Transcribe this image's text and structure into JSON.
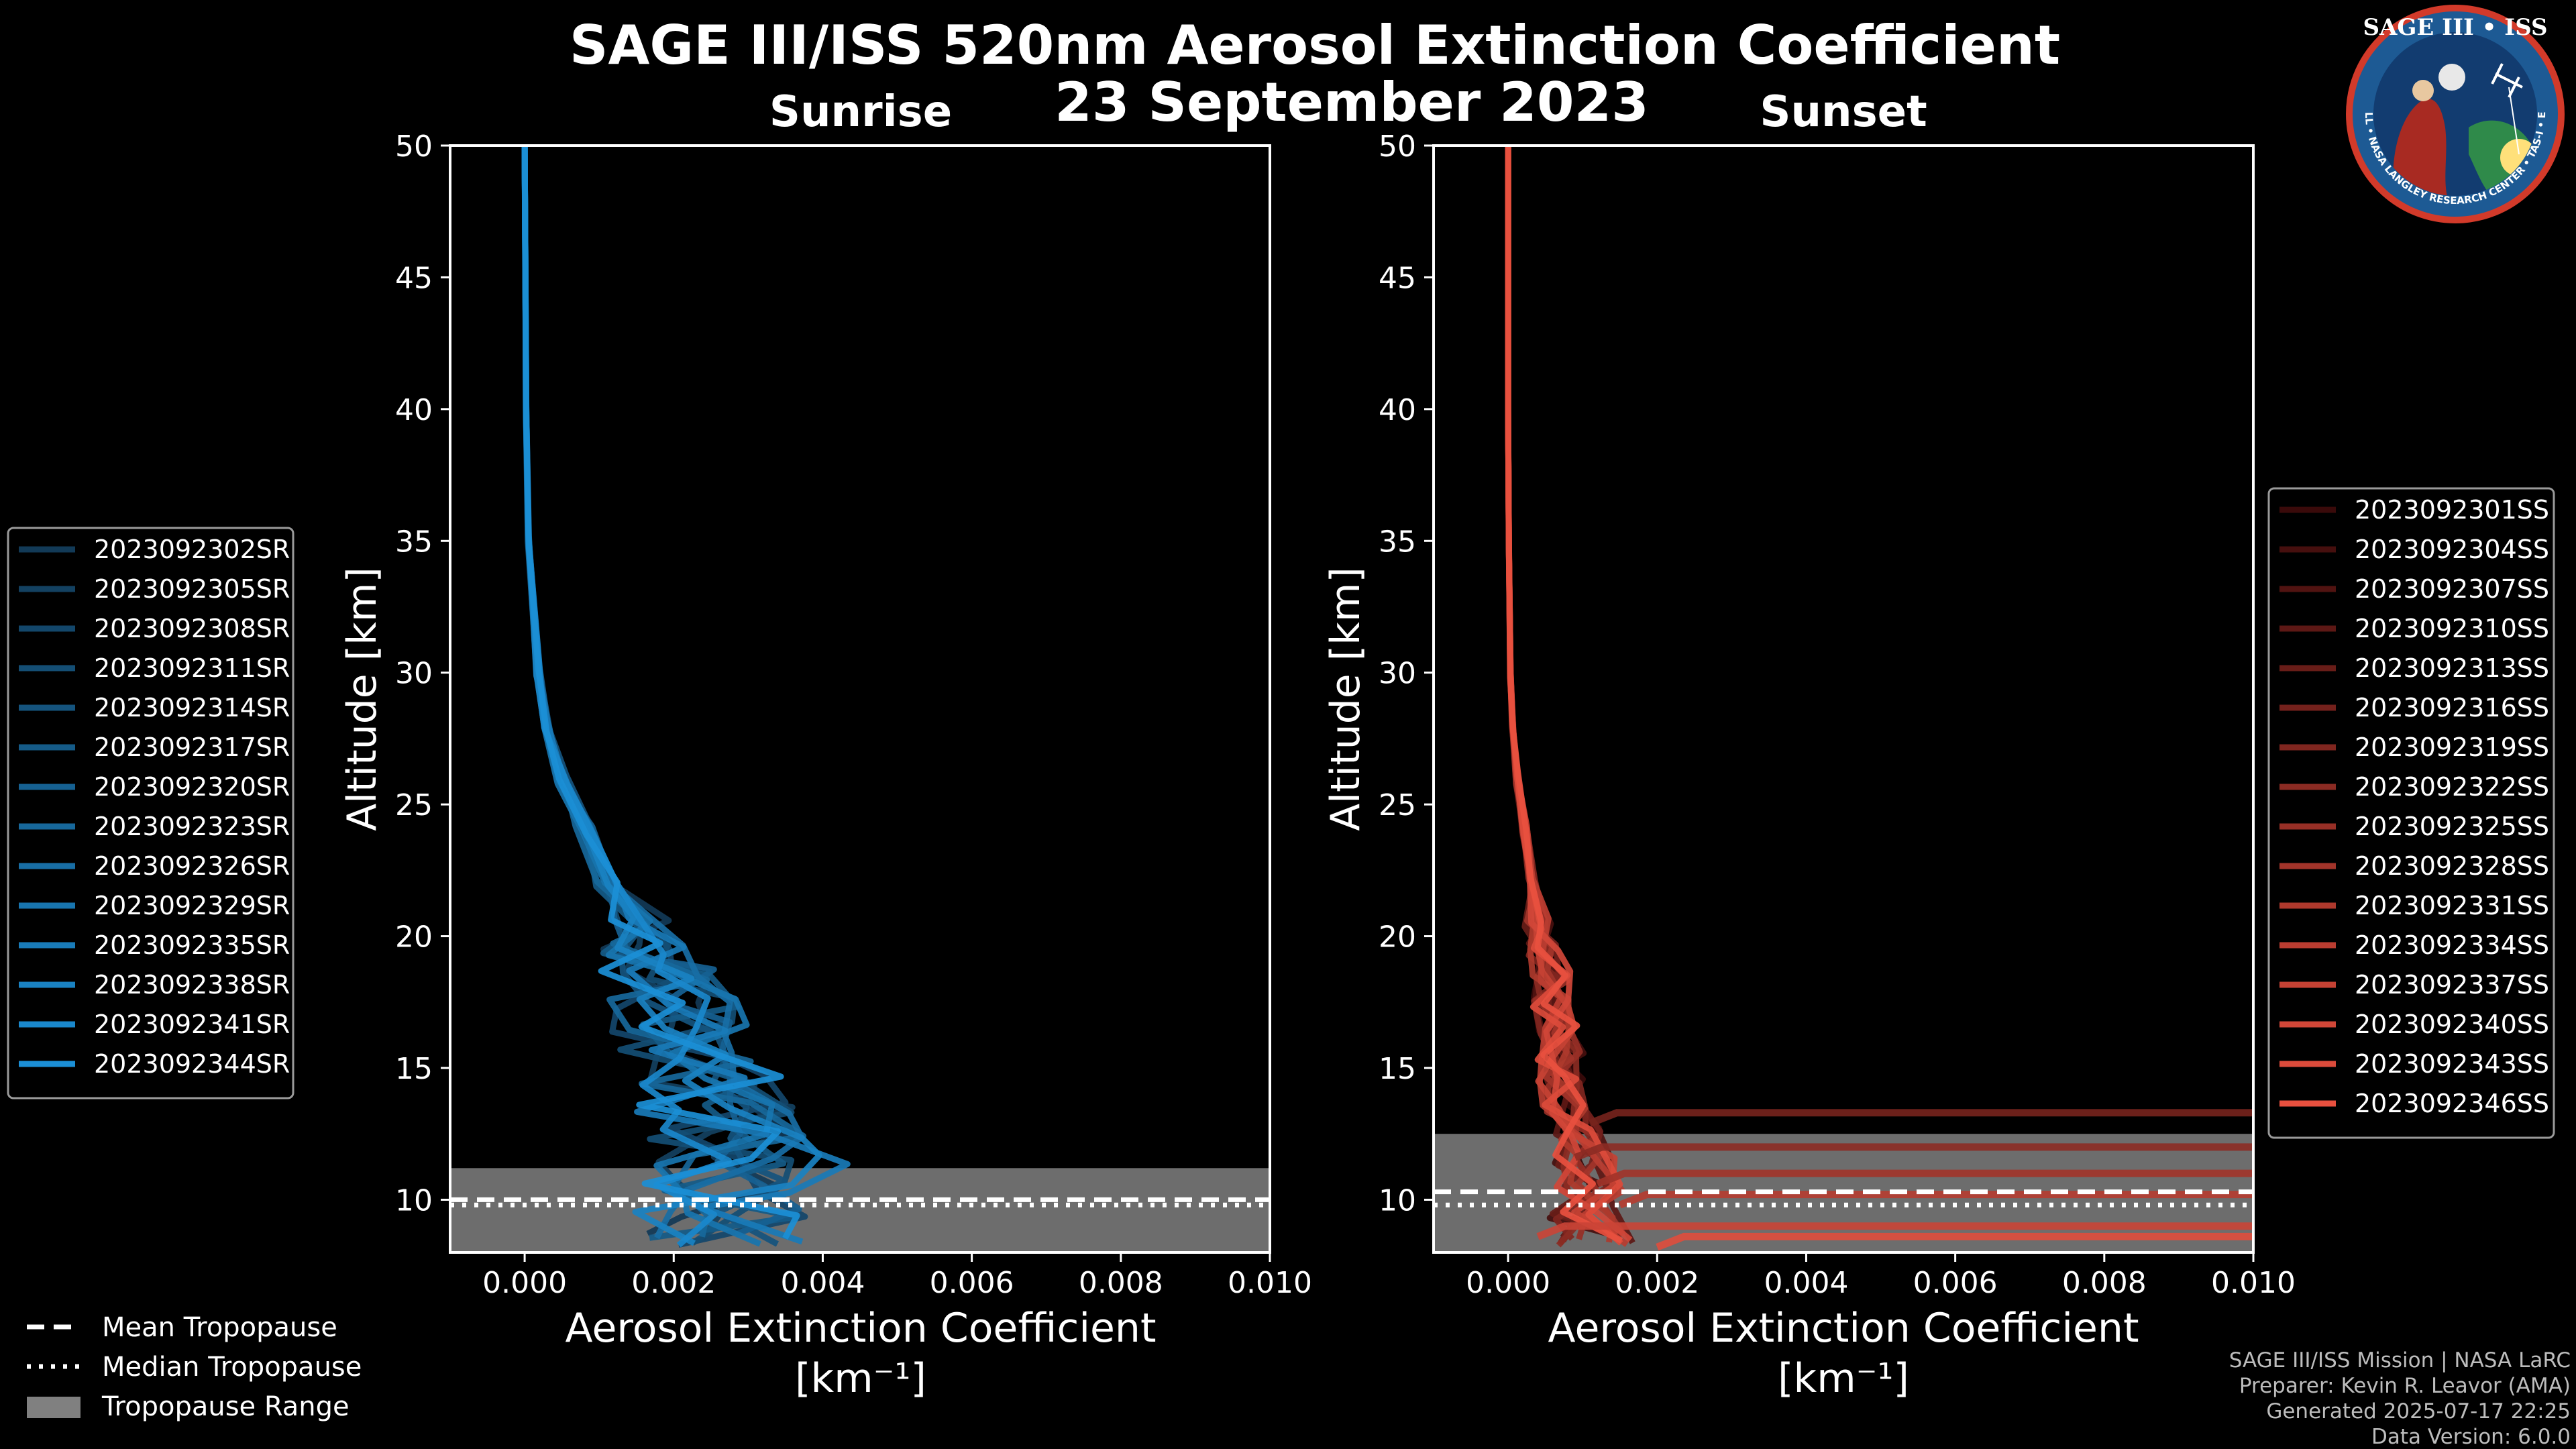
{
  "figure": {
    "title": "SAGE III/ISS 520nm Aerosol Extinction Coefficient",
    "date": "23 September 2023",
    "credits": [
      "SAGE III/ISS Mission | NASA LaRC",
      "Preparer: Kevin R. Leavor (AMA)",
      "Generated 2025-07-17 22:25",
      "Data Version: 6.0.0"
    ],
    "logo": {
      "title": "SAGE III • ISS",
      "ring_text": "BALL • NASA LANGLEY RESEARCH CENTER • TAS-I • ESA"
    },
    "common_legend": [
      {
        "label": "Mean Tropopause",
        "style": "dashed"
      },
      {
        "label": "Median Tropopause",
        "style": "dotted"
      },
      {
        "label": "Tropopause Range",
        "style": "patch"
      }
    ]
  },
  "chart_data": [
    {
      "type": "line",
      "title": "Sunrise",
      "xlabel": "Aerosol Extinction Coefficient",
      "xlabel_unit": "[km⁻¹]",
      "ylabel": "Altitude [km]",
      "xlim": [
        -0.001,
        0.01
      ],
      "ylim": [
        8,
        50
      ],
      "xticks": [
        0.0,
        0.002,
        0.004,
        0.006,
        0.008,
        0.01
      ],
      "xtick_labels": [
        "0.000",
        "0.002",
        "0.004",
        "0.006",
        "0.008",
        "0.010"
      ],
      "yticks": [
        10,
        15,
        20,
        25,
        30,
        35,
        40,
        45,
        50
      ],
      "ytick_labels": [
        "10",
        "15",
        "20",
        "25",
        "30",
        "35",
        "40",
        "45",
        "50"
      ],
      "tropopause": {
        "mean": 10.0,
        "median": 9.8,
        "range": [
          8.0,
          11.2
        ]
      },
      "legend_position": "left",
      "color_start": "#123a57",
      "color_end": "#1b8fd6",
      "series_names": [
        "2023092302SR",
        "2023092305SR",
        "2023092308SR",
        "2023092311SR",
        "2023092314SR",
        "2023092317SR",
        "2023092320SR",
        "2023092323SR",
        "2023092326SR",
        "2023092329SR",
        "2023092335SR",
        "2023092338SR",
        "2023092341SR",
        "2023092344SR"
      ],
      "profile_altitudes": [
        8.5,
        9.5,
        10.5,
        11.5,
        12.5,
        13.5,
        14.5,
        15.5,
        16.5,
        17.5,
        18.5,
        19.5,
        20.5,
        22,
        24,
        26,
        28,
        30,
        35,
        40,
        45,
        50
      ],
      "mean_profile": [
        0.003,
        0.0026,
        0.0028,
        0.003,
        0.0029,
        0.0026,
        0.0024,
        0.0022,
        0.0021,
        0.002,
        0.0018,
        0.0016,
        0.0014,
        0.0011,
        0.0008,
        0.0005,
        0.0003,
        0.00018,
        5e-05,
        2e-05,
        1e-05,
        0.0
      ]
    },
    {
      "type": "line",
      "title": "Sunset",
      "xlabel": "Aerosol Extinction Coefficient",
      "xlabel_unit": "[km⁻¹]",
      "ylabel": "Altitude [km]",
      "xlim": [
        -0.001,
        0.01
      ],
      "ylim": [
        8,
        50
      ],
      "xticks": [
        0.0,
        0.002,
        0.004,
        0.006,
        0.008,
        0.01
      ],
      "xtick_labels": [
        "0.000",
        "0.002",
        "0.004",
        "0.006",
        "0.008",
        "0.010"
      ],
      "yticks": [
        10,
        15,
        20,
        25,
        30,
        35,
        40,
        45,
        50
      ],
      "ytick_labels": [
        "10",
        "15",
        "20",
        "25",
        "30",
        "35",
        "40",
        "45",
        "50"
      ],
      "tropopause": {
        "mean": 10.3,
        "median": 9.8,
        "range": [
          8.0,
          12.5
        ]
      },
      "legend_position": "right",
      "color_start": "#3a0a0a",
      "color_end": "#e8503f",
      "series_names": [
        "2023092301SS",
        "2023092304SS",
        "2023092307SS",
        "2023092310SS",
        "2023092313SS",
        "2023092316SS",
        "2023092319SS",
        "2023092322SS",
        "2023092325SS",
        "2023092328SS",
        "2023092331SS",
        "2023092334SS",
        "2023092337SS",
        "2023092340SS",
        "2023092343SS",
        "2023092346SS"
      ],
      "profile_altitudes": [
        8.5,
        9.5,
        10.5,
        11.5,
        12.5,
        13.5,
        14.5,
        15.5,
        16.5,
        17.5,
        18.5,
        19.5,
        20.5,
        22,
        24,
        26,
        28,
        30,
        35,
        40,
        45,
        50
      ],
      "mean_profile": [
        0.0012,
        0.001,
        0.0011,
        0.001,
        0.0009,
        0.0008,
        0.0007,
        0.0007,
        0.0007,
        0.0006,
        0.0006,
        0.0005,
        0.0004,
        0.00032,
        0.00022,
        0.00012,
        6e-05,
        3e-05,
        1e-05,
        0.0,
        0.0,
        0.0
      ],
      "high_extinction_traces": [
        {
          "alt": 13.3,
          "x_start": 0.0011
        },
        {
          "alt": 12.0,
          "x_start": 0.0009
        },
        {
          "alt": 11.0,
          "x_start": 0.0012
        },
        {
          "alt": 10.2,
          "x_start": 0.0015
        },
        {
          "alt": 9.0,
          "x_start": 0.0004
        },
        {
          "alt": 8.6,
          "x_start": 0.002
        }
      ]
    }
  ]
}
